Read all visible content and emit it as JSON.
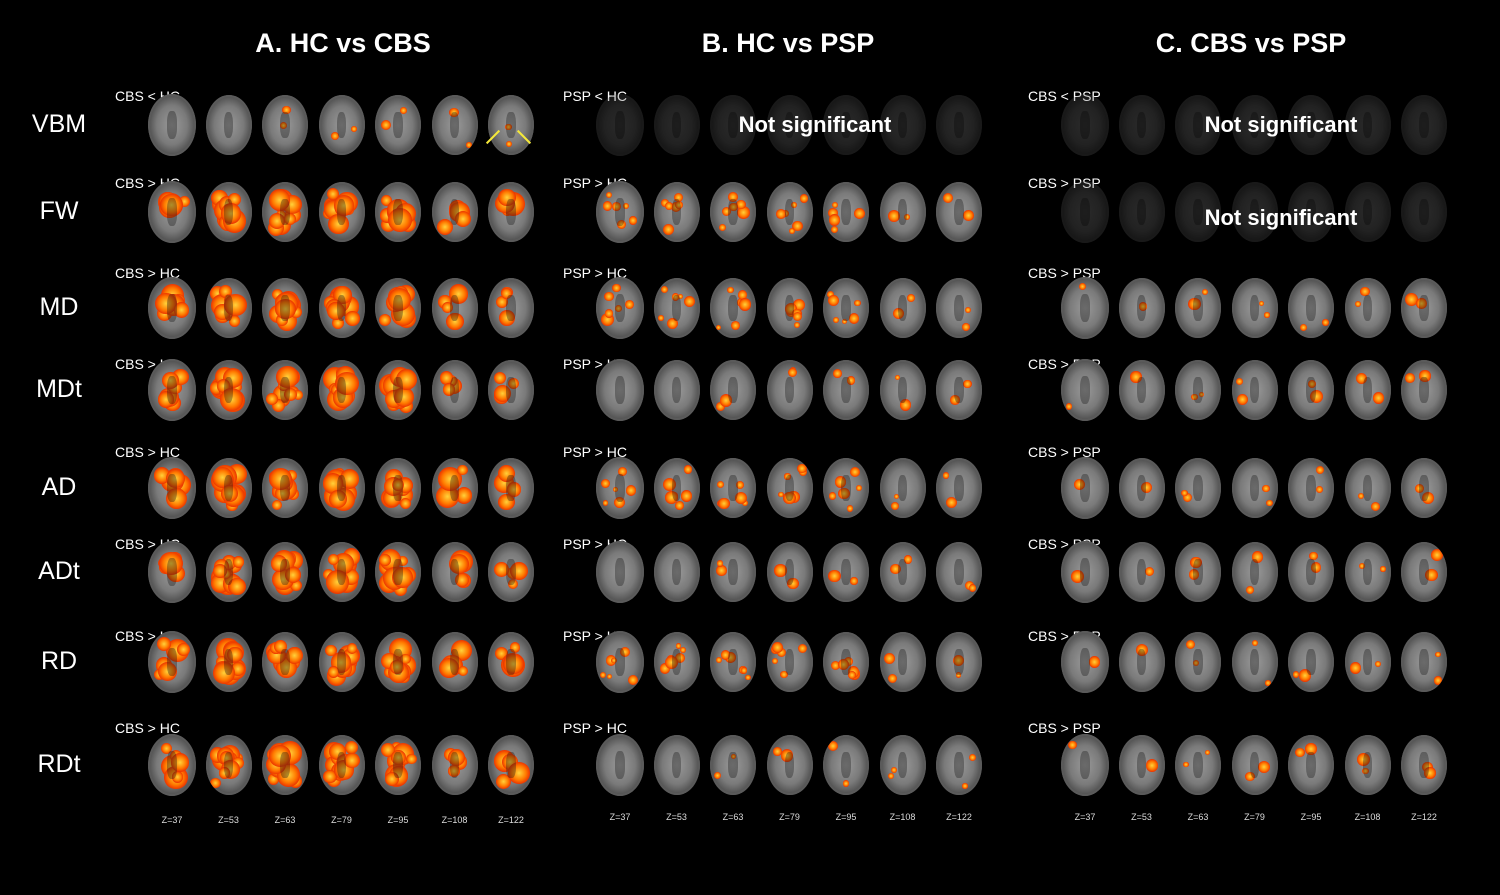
{
  "panels": [
    {
      "title": "A. HC vs CBS",
      "contrasts": [
        "CBS < HC",
        "CBS > HC",
        "CBS > HC",
        "CBS > HC",
        "CBS > HC",
        "CBS > HC",
        "CBS > HC",
        "CBS > HC"
      ]
    },
    {
      "title": "B. HC vs PSP",
      "contrasts": [
        "PSP < HC",
        "PSP > HC",
        "PSP > HC",
        "PSP > HC",
        "PSP > HC",
        "PSP > HC",
        "PSP > HC",
        "PSP > HC"
      ]
    },
    {
      "title": "C. CBS vs PSP",
      "contrasts": [
        "CBS < PSP",
        "CBS > PSP",
        "CBS > PSP",
        "CBS > PSP",
        "CBS > PSP",
        "CBS > PSP",
        "CBS > PSP",
        "CBS > PSP"
      ]
    }
  ],
  "rows": [
    "VBM",
    "FW",
    "MD",
    "MDt",
    "AD",
    "ADt",
    "RD",
    "RDt"
  ],
  "not_significant": "Not significant",
  "slice_labels": [
    "Z=37",
    "Z=53",
    "Z=63",
    "Z=79",
    "Z=95",
    "Z=108",
    "Z=122"
  ],
  "significance": {
    "A": [
      "low",
      "high",
      "high",
      "high",
      "high",
      "high",
      "high",
      "high"
    ],
    "B": [
      "none",
      "medium",
      "medium",
      "low",
      "medium",
      "low",
      "medium",
      "low"
    ],
    "C": [
      "none",
      "none",
      "low",
      "low",
      "low",
      "low",
      "low",
      "low"
    ]
  },
  "colors": {
    "background": "#000000",
    "overlay": "#ff5a00",
    "arrow": "#f5e93a"
  }
}
